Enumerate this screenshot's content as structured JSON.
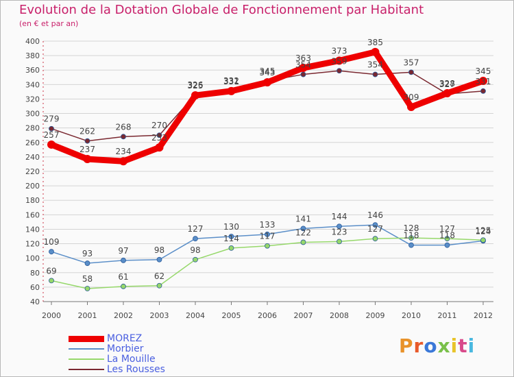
{
  "header": {
    "title": "Evolution de la Dotation Globale de Fonctionnement par Habitant",
    "subtitle": "(en € et par an)"
  },
  "brand": {
    "text": "Proxiti",
    "colors": [
      "#e8922a",
      "#e85a2a",
      "#3a78d8",
      "#7ac04a",
      "#e8c42a",
      "#d84a8a",
      "#4ab8e0"
    ]
  },
  "chart_data": {
    "type": "line",
    "x": [
      "2000",
      "2001",
      "2002",
      "2003",
      "2004",
      "2005",
      "2006",
      "2007",
      "2008",
      "2009",
      "2010",
      "2011",
      "2012"
    ],
    "ylim": [
      40,
      400
    ],
    "yticks": [
      40,
      60,
      80,
      100,
      120,
      140,
      160,
      180,
      200,
      220,
      240,
      260,
      280,
      300,
      320,
      340,
      360,
      380,
      400
    ],
    "grid": true,
    "legend_position": "bottom-left",
    "series": [
      {
        "name": "MOREZ",
        "color": "#ee0000",
        "values": [
          257,
          237,
          234,
          253,
          325,
          331,
          343,
          363,
          373,
          385,
          309,
          328,
          345
        ]
      },
      {
        "name": "Morbier",
        "color": "#5a8ec8",
        "values": [
          109,
          93,
          97,
          98,
          127,
          130,
          133,
          141,
          144,
          146,
          118,
          118,
          124
        ]
      },
      {
        "name": "La Mouille",
        "color": "#96d86a",
        "values": [
          69,
          58,
          61,
          62,
          98,
          114,
          117,
          122,
          123,
          127,
          128,
          127,
          125
        ]
      },
      {
        "name": "Les Rousses",
        "color": "#7a2830",
        "values": [
          279,
          262,
          268,
          270,
          326,
          332,
          345,
          354,
          359,
          354,
          357,
          327,
          331
        ]
      }
    ]
  }
}
